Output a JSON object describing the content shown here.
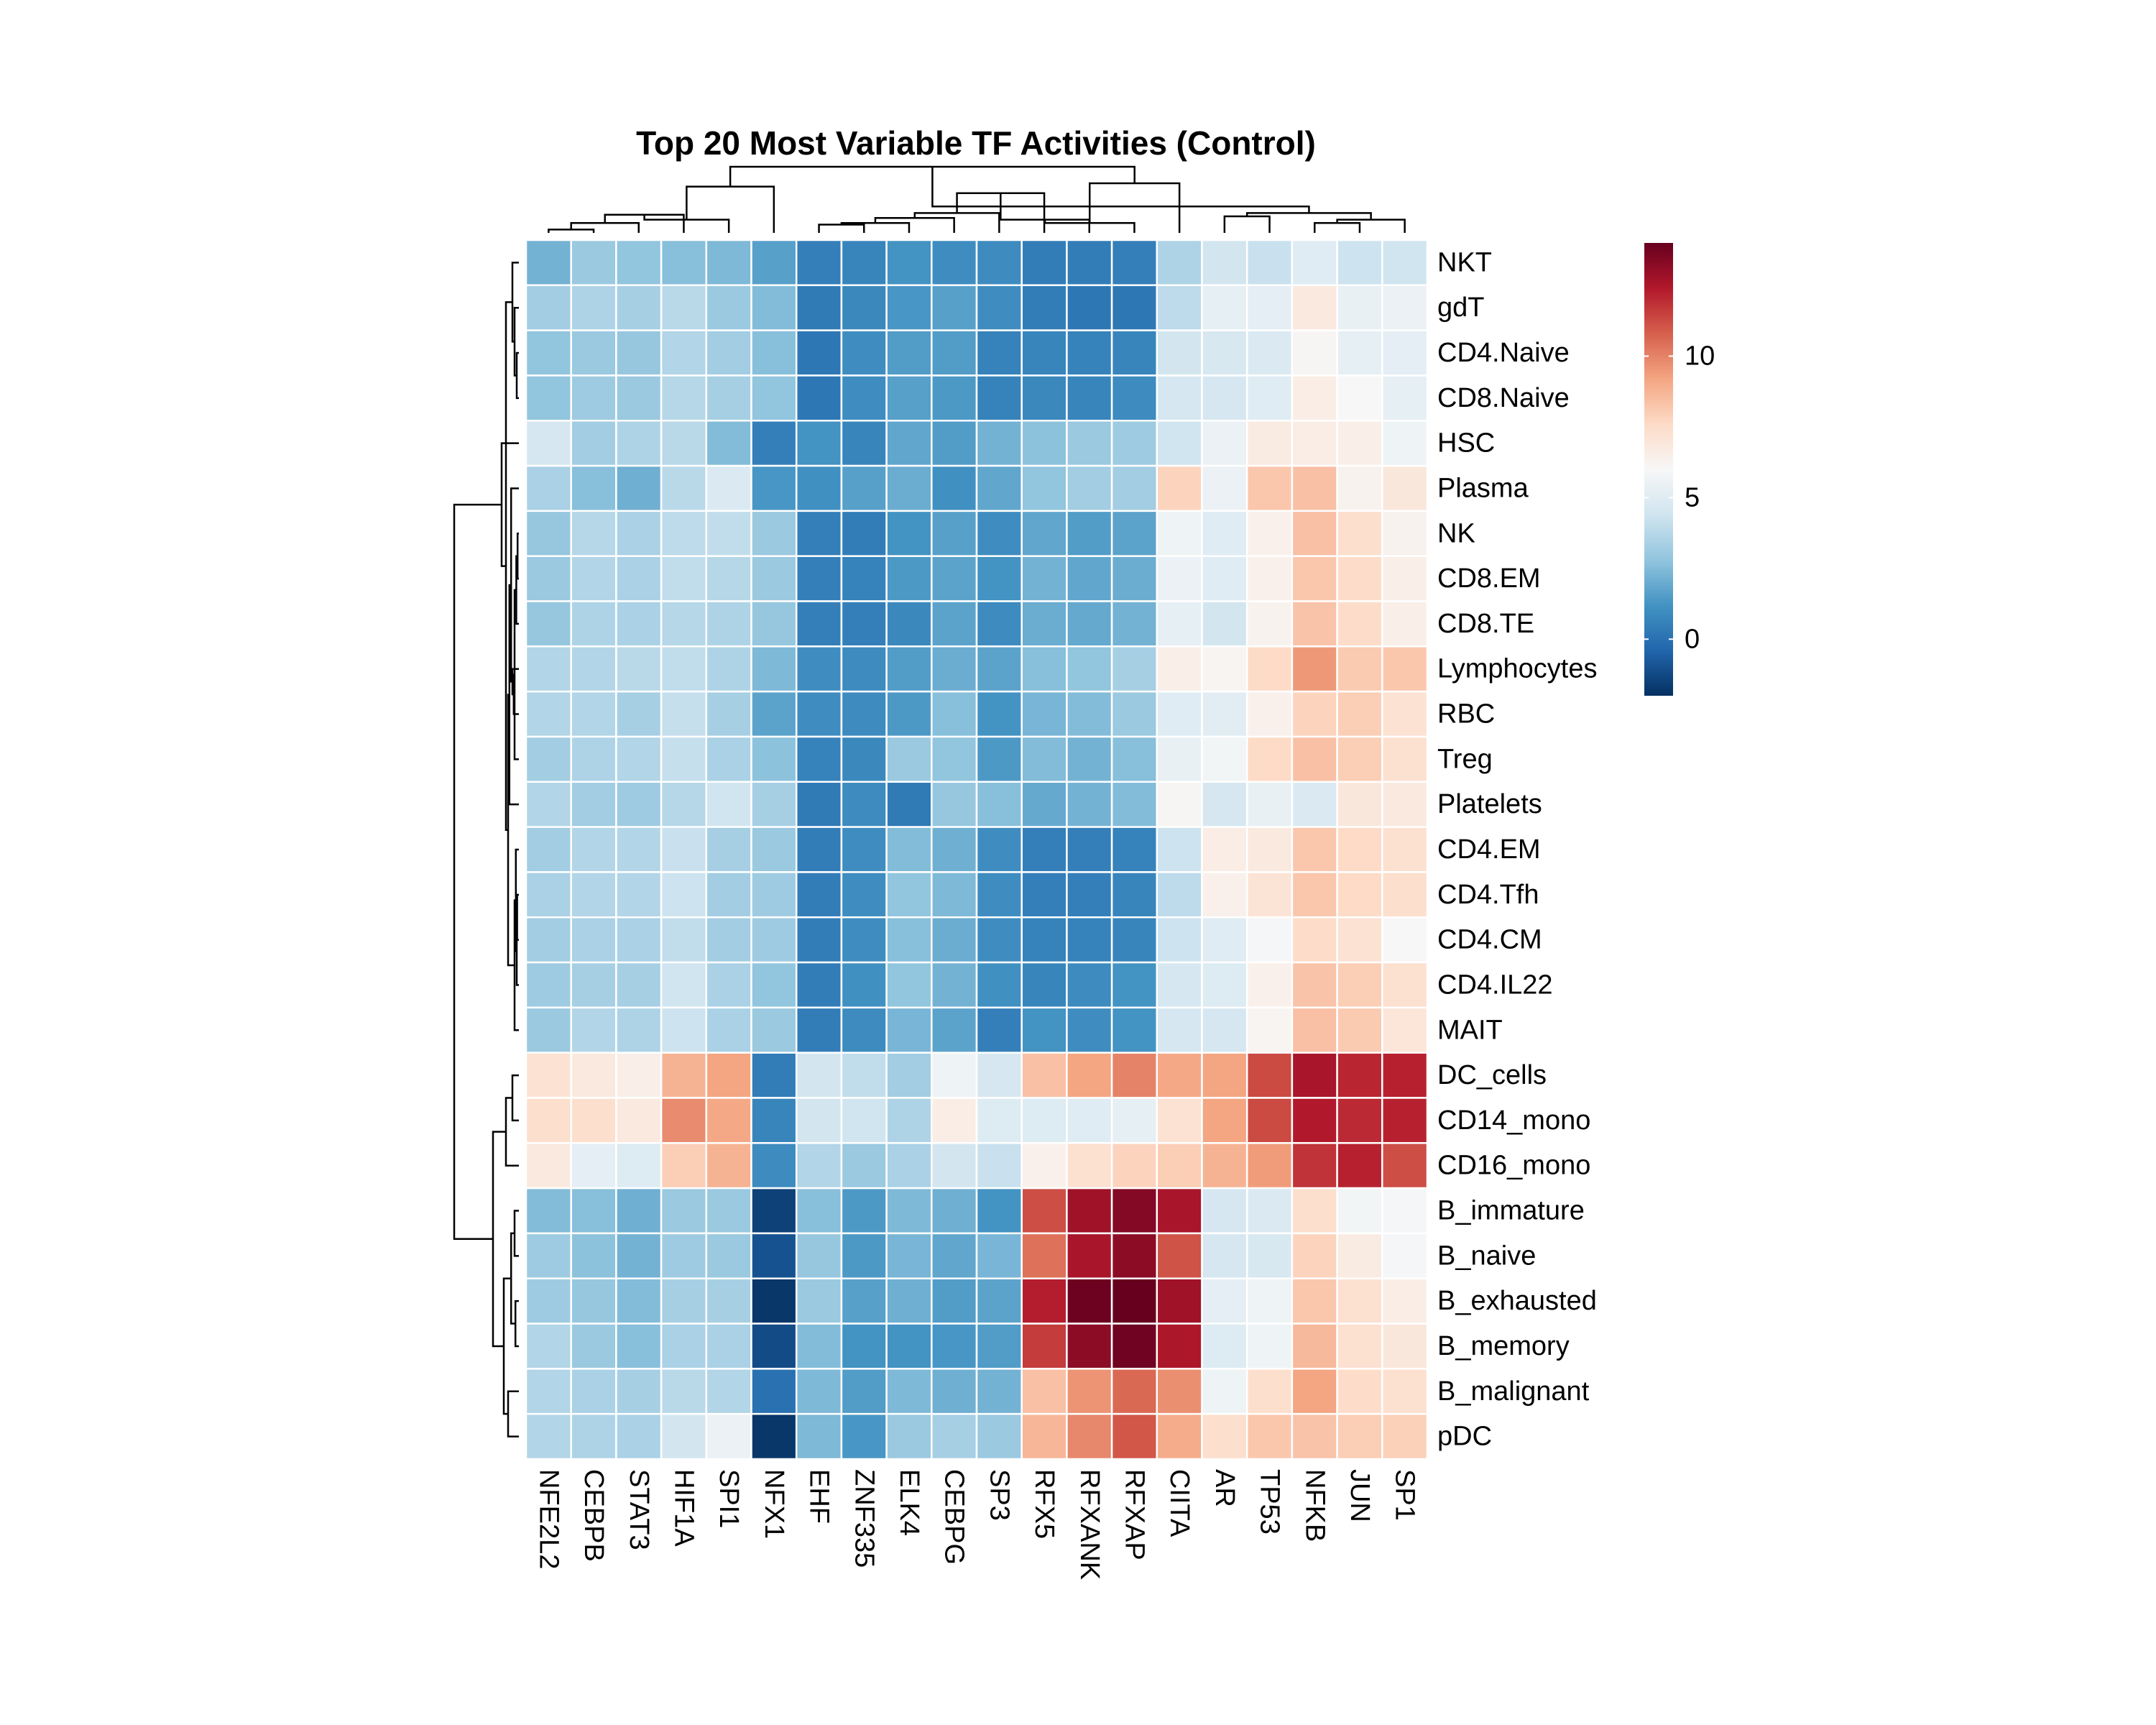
{
  "chart_data": {
    "type": "heatmap",
    "title": "Top 20 Most Variable TF Activities (Control)",
    "columns": [
      "NFE2L2",
      "CEBPB",
      "STAT3",
      "HIF1A",
      "SPI1",
      "NFX1",
      "EHF",
      "ZNF335",
      "ELK4",
      "CEBPG",
      "SP3",
      "RFX5",
      "RFXANK",
      "RFXAP",
      "CIITA",
      "AR",
      "TP53",
      "NFKB",
      "JUN",
      "SP1"
    ],
    "rows": [
      "NKT",
      "gdT",
      "CD4.Naive",
      "CD8.Naive",
      "HSC",
      "Plasma",
      "NK",
      "CD8.EM",
      "CD8.TE",
      "Lymphocytes",
      "RBC",
      "Treg",
      "Platelets",
      "CD4.EM",
      "CD4.Tfh",
      "CD4.CM",
      "CD4.IL22",
      "MAIT",
      "DC_cells",
      "CD14_mono",
      "CD16_mono",
      "B_immature",
      "B_naive",
      "B_exhausted",
      "B_memory",
      "B_malignant",
      "pDC"
    ],
    "values": [
      [
        2.2,
        3.0,
        2.8,
        2.6,
        2.4,
        1.6,
        0.5,
        0.7,
        1.2,
        1.0,
        0.9,
        0.4,
        0.4,
        0.5,
        3.5,
        4.5,
        4.2,
        5.0,
        4.3,
        4.4
      ],
      [
        3.2,
        3.5,
        3.3,
        3.8,
        3.0,
        2.5,
        0.3,
        0.8,
        1.3,
        1.6,
        1.0,
        0.4,
        0.2,
        0.2,
        3.9,
        5.3,
        5.2,
        6.8,
        5.4,
        5.5
      ],
      [
        2.8,
        3.0,
        2.9,
        3.6,
        3.2,
        2.6,
        0.2,
        1.0,
        1.5,
        1.5,
        0.6,
        0.7,
        0.6,
        0.7,
        4.5,
        4.7,
        4.8,
        6.1,
        5.3,
        5.2
      ],
      [
        2.8,
        3.1,
        3.0,
        3.7,
        3.3,
        2.8,
        0.2,
        1.0,
        1.6,
        1.4,
        0.6,
        0.8,
        0.7,
        0.9,
        4.6,
        4.6,
        5.0,
        6.6,
        6.0,
        5.3
      ],
      [
        4.6,
        3.2,
        3.5,
        3.8,
        2.5,
        0.5,
        1.2,
        0.7,
        1.8,
        1.5,
        2.2,
        2.7,
        3.0,
        3.1,
        4.4,
        5.5,
        6.7,
        6.6,
        6.5,
        5.6
      ],
      [
        3.4,
        2.6,
        2.1,
        3.8,
        4.8,
        1.3,
        1.1,
        1.6,
        2.0,
        1.1,
        1.8,
        2.8,
        3.2,
        3.2,
        7.8,
        5.5,
        8.2,
        8.4,
        6.3,
        6.9
      ],
      [
        2.9,
        3.7,
        3.4,
        3.9,
        4.0,
        3.0,
        0.5,
        0.4,
        1.2,
        1.6,
        1.0,
        1.8,
        1.5,
        1.7,
        5.6,
        5.0,
        6.4,
        8.4,
        7.4,
        6.3
      ],
      [
        3.0,
        3.6,
        3.4,
        4.0,
        3.7,
        3.0,
        0.5,
        0.6,
        1.4,
        1.7,
        1.2,
        2.2,
        1.8,
        2.0,
        5.5,
        5.0,
        6.4,
        8.2,
        7.5,
        6.5
      ],
      [
        2.9,
        3.5,
        3.4,
        3.7,
        3.5,
        2.9,
        0.5,
        0.5,
        0.8,
        1.7,
        0.9,
        2.0,
        1.9,
        2.2,
        5.3,
        4.5,
        6.3,
        8.3,
        7.5,
        6.5
      ],
      [
        3.6,
        3.6,
        3.8,
        4.0,
        3.5,
        2.4,
        1.0,
        0.9,
        1.5,
        2.0,
        1.7,
        2.6,
        2.8,
        3.3,
        6.5,
        6.2,
        7.6,
        9.5,
        8.1,
        8.2
      ],
      [
        3.6,
        3.6,
        3.3,
        4.1,
        3.3,
        1.7,
        1.0,
        0.9,
        1.4,
        2.6,
        1.2,
        2.3,
        2.5,
        3.0,
        5.0,
        5.1,
        6.4,
        7.8,
        8.0,
        7.2
      ],
      [
        3.2,
        3.5,
        3.6,
        4.1,
        3.4,
        2.7,
        0.6,
        0.8,
        3.0,
        2.8,
        1.4,
        2.5,
        2.2,
        2.6,
        5.4,
        5.8,
        7.6,
        8.4,
        8.0,
        7.3
      ],
      [
        3.6,
        3.2,
        3.1,
        3.7,
        4.4,
        3.3,
        0.3,
        0.9,
        0.3,
        2.9,
        2.6,
        1.9,
        2.2,
        2.5,
        6.1,
        4.6,
        5.4,
        4.8,
        6.9,
        6.8
      ],
      [
        3.2,
        3.6,
        3.6,
        4.2,
        3.3,
        3.0,
        0.4,
        1.0,
        2.5,
        2.1,
        1.0,
        0.5,
        0.5,
        0.6,
        4.3,
        6.6,
        6.8,
        8.2,
        7.6,
        7.3
      ],
      [
        3.4,
        3.6,
        3.6,
        4.3,
        3.2,
        3.1,
        0.4,
        1.0,
        2.8,
        2.4,
        1.0,
        0.5,
        0.5,
        0.7,
        3.9,
        6.4,
        7.1,
        8.2,
        7.6,
        7.4
      ],
      [
        3.2,
        3.4,
        3.4,
        4.0,
        3.2,
        3.1,
        0.4,
        1.0,
        2.6,
        2.0,
        1.0,
        0.6,
        0.6,
        0.7,
        4.3,
        5.0,
        5.9,
        7.5,
        7.2,
        6.0
      ],
      [
        3.1,
        3.3,
        3.3,
        4.4,
        3.4,
        2.8,
        0.4,
        1.1,
        2.8,
        2.2,
        1.1,
        0.7,
        0.9,
        1.2,
        4.6,
        4.9,
        6.4,
        8.3,
        8.0,
        7.3
      ],
      [
        3.0,
        3.6,
        3.5,
        4.3,
        3.4,
        3.0,
        0.4,
        0.9,
        2.3,
        1.7,
        0.5,
        1.2,
        1.0,
        1.2,
        4.6,
        4.6,
        6.2,
        8.4,
        8.1,
        7.0
      ],
      [
        7.2,
        6.8,
        6.5,
        8.8,
        9.2,
        0.4,
        4.5,
        4.0,
        3.2,
        5.6,
        4.6,
        8.4,
        9.2,
        10.0,
        9.1,
        9.2,
        11.3,
        12.6,
        12.1,
        12.2
      ],
      [
        7.4,
        7.4,
        6.8,
        9.8,
        9.1,
        0.7,
        4.5,
        4.4,
        3.5,
        6.6,
        4.9,
        4.9,
        5.0,
        5.3,
        7.2,
        9.2,
        11.3,
        12.4,
        12.0,
        12.2
      ],
      [
        6.8,
        5.2,
        4.9,
        8.0,
        8.8,
        0.9,
        3.6,
        3.0,
        3.4,
        4.5,
        4.2,
        6.4,
        7.3,
        7.8,
        8.0,
        8.8,
        9.4,
        11.8,
        12.2,
        11.2
      ],
      [
        2.5,
        2.6,
        2.1,
        3.0,
        3.0,
        -1.5,
        2.6,
        1.4,
        2.4,
        2.1,
        1.2,
        11.2,
        12.8,
        13.4,
        12.6,
        4.6,
        4.8,
        7.4,
        5.8,
        5.9
      ],
      [
        3.1,
        2.7,
        2.2,
        3.1,
        3.0,
        -1.0,
        2.9,
        1.4,
        2.3,
        1.8,
        2.3,
        10.4,
        12.6,
        13.2,
        11.1,
        4.6,
        4.7,
        7.8,
        6.7,
        5.9
      ],
      [
        3.1,
        2.9,
        2.5,
        3.3,
        3.3,
        -1.8,
        3.0,
        1.6,
        2.1,
        1.5,
        1.7,
        12.3,
        13.9,
        14.5,
        12.8,
        5.2,
        5.6,
        8.2,
        7.3,
        6.6
      ],
      [
        3.6,
        3.0,
        2.6,
        3.4,
        3.4,
        -1.2,
        2.5,
        1.2,
        1.2,
        1.3,
        1.5,
        11.6,
        13.2,
        13.8,
        12.5,
        4.9,
        5.6,
        8.6,
        7.3,
        6.9
      ],
      [
        3.6,
        3.4,
        3.3,
        3.8,
        3.6,
        0.0,
        2.4,
        1.5,
        2.4,
        2.1,
        2.2,
        8.4,
        9.6,
        10.6,
        9.7,
        5.6,
        7.4,
        9.2,
        7.5,
        7.3
      ],
      [
        3.6,
        3.5,
        3.4,
        4.5,
        5.5,
        -1.8,
        2.4,
        1.3,
        3.0,
        3.3,
        3.0,
        8.7,
        9.9,
        11.0,
        9.0,
        7.4,
        8.2,
        8.3,
        8.0,
        7.9
      ]
    ],
    "colorbar": {
      "min": -2,
      "max": 14,
      "ticks": [
        0,
        5,
        10
      ]
    },
    "colors": [
      "#053061",
      "#2166ac",
      "#4393c3",
      "#92c5de",
      "#d1e5f0",
      "#f7f7f7",
      "#fddbc7",
      "#f4a582",
      "#d6604d",
      "#b2182b",
      "#67001f"
    ],
    "col_dendrogram": {
      "merges": [
        [
          0,
          1,
          0.1
        ],
        [
          20,
          2,
          0.3
        ],
        [
          21,
          3,
          0.55
        ],
        [
          22,
          4,
          0.4
        ],
        [
          23,
          5,
          1.4
        ],
        [
          6,
          7,
          0.25
        ],
        [
          25,
          8,
          0.3
        ],
        [
          26,
          9,
          0.45
        ],
        [
          27,
          10,
          0.6
        ],
        [
          28,
          11,
          1.2
        ],
        [
          29,
          12,
          0.4
        ],
        [
          30,
          13,
          0.3
        ],
        [
          31,
          14,
          1.5
        ],
        [
          24,
          32,
          2.0
        ],
        [
          15,
          16,
          0.5
        ],
        [
          17,
          18,
          0.3
        ],
        [
          35,
          19,
          0.4
        ],
        [
          34,
          36,
          0.6
        ],
        [
          33,
          37,
          0.8
        ]
      ]
    },
    "row_dendrogram": {
      "merges": [
        [
          2,
          3,
          0.05
        ],
        [
          27,
          1,
          0.1
        ],
        [
          28,
          0,
          0.15
        ],
        [
          6,
          7,
          0.03
        ],
        [
          30,
          8,
          0.06
        ],
        [
          31,
          11,
          0.1
        ],
        [
          32,
          10,
          0.12
        ],
        [
          33,
          9,
          0.15
        ],
        [
          34,
          5,
          0.18
        ],
        [
          35,
          12,
          0.22
        ],
        [
          14,
          15,
          0.04
        ],
        [
          37,
          16,
          0.05
        ],
        [
          38,
          13,
          0.07
        ],
        [
          39,
          17,
          0.1
        ],
        [
          36,
          40,
          0.25
        ],
        [
          29,
          41,
          0.3
        ],
        [
          42,
          4,
          0.4
        ],
        [
          18,
          19,
          0.15
        ],
        [
          44,
          20,
          0.3
        ],
        [
          21,
          22,
          0.1
        ],
        [
          23,
          24,
          0.08
        ],
        [
          46,
          47,
          0.18
        ],
        [
          25,
          26,
          0.25
        ],
        [
          48,
          49,
          0.35
        ],
        [
          45,
          50,
          0.6
        ],
        [
          43,
          51,
          1.5
        ]
      ]
    }
  }
}
